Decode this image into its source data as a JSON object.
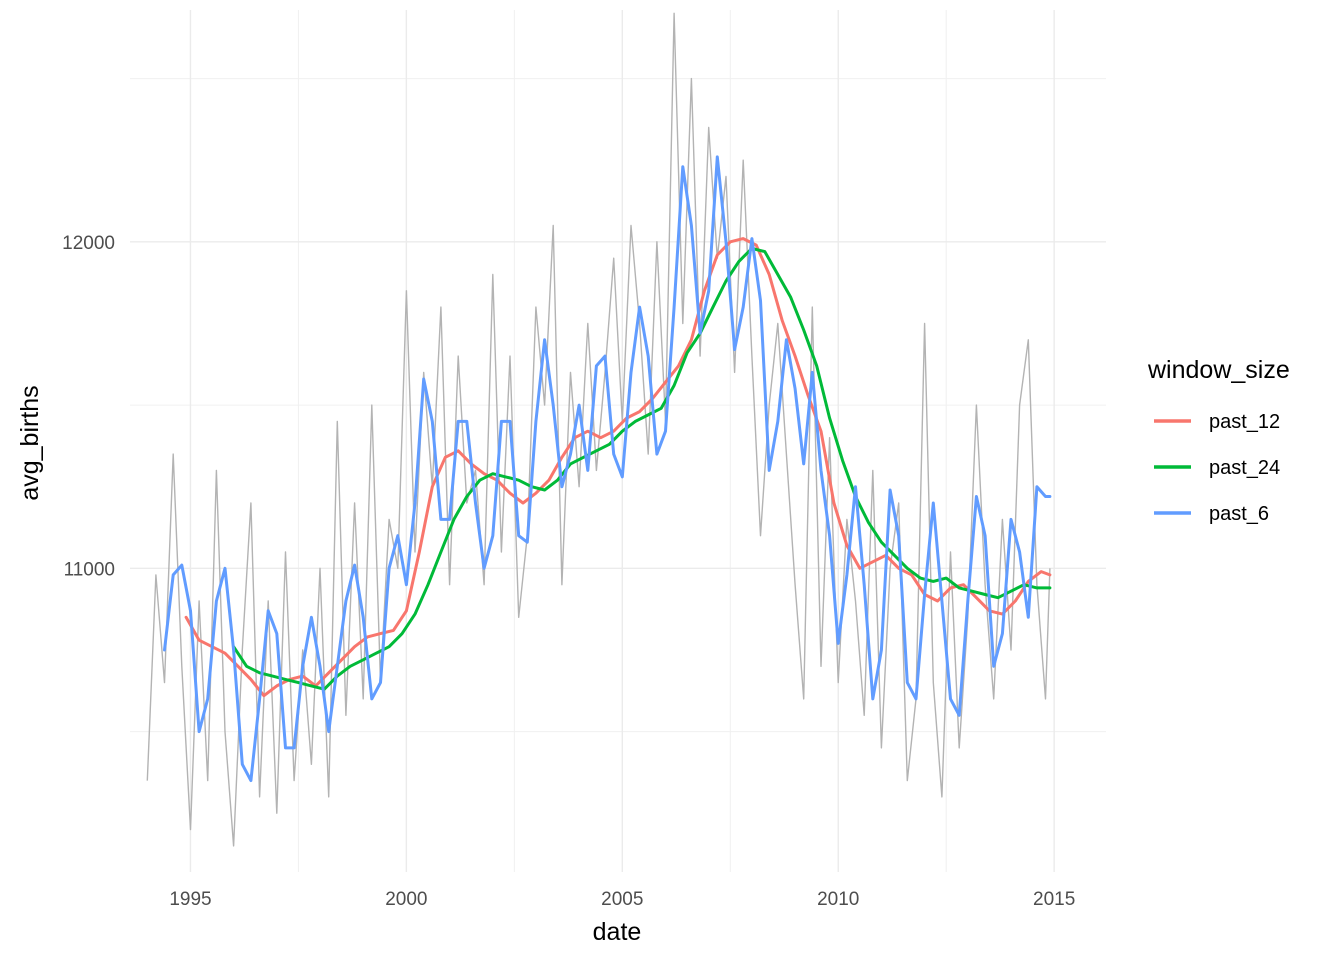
{
  "chart_data": {
    "type": "line",
    "xlabel": "date",
    "ylabel": "avg_births",
    "xlim": [
      1993.6,
      2016.2
    ],
    "ylim": [
      10070,
      12710
    ],
    "x_ticks": [
      1995,
      2000,
      2005,
      2010,
      2015
    ],
    "x_tick_labels": [
      "1995",
      "2000",
      "2005",
      "2010",
      "2015"
    ],
    "y_ticks": [
      11000,
      12000
    ],
    "y_tick_labels": [
      "11000",
      "12000"
    ],
    "grid": true,
    "raw_series_color": "#b3b3b3",
    "legend": {
      "title": "window_size",
      "position": "right"
    },
    "raw": {
      "x": [
        1994.0,
        1994.2,
        1994.4,
        1994.6,
        1994.8,
        1995.0,
        1995.2,
        1995.4,
        1995.6,
        1995.8,
        1996.0,
        1996.2,
        1996.4,
        1996.6,
        1996.8,
        1997.0,
        1997.2,
        1997.4,
        1997.6,
        1997.8,
        1998.0,
        1998.2,
        1998.4,
        1998.6,
        1998.8,
        1999.0,
        1999.2,
        1999.4,
        1999.6,
        1999.8,
        2000.0,
        2000.2,
        2000.4,
        2000.6,
        2000.8,
        2001.0,
        2001.2,
        2001.4,
        2001.6,
        2001.8,
        2002.0,
        2002.2,
        2002.4,
        2002.6,
        2002.8,
        2003.0,
        2003.2,
        2003.4,
        2003.6,
        2003.8,
        2004.0,
        2004.2,
        2004.4,
        2004.6,
        2004.8,
        2005.0,
        2005.2,
        2005.4,
        2005.6,
        2005.8,
        2006.0,
        2006.2,
        2006.4,
        2006.6,
        2006.8,
        2007.0,
        2007.2,
        2007.4,
        2007.6,
        2007.8,
        2008.0,
        2008.2,
        2008.4,
        2008.6,
        2008.8,
        2009.0,
        2009.2,
        2009.4,
        2009.6,
        2009.8,
        2010.0,
        2010.2,
        2010.4,
        2010.6,
        2010.8,
        2011.0,
        2011.2,
        2011.4,
        2011.6,
        2011.8,
        2012.0,
        2012.2,
        2012.4,
        2012.6,
        2012.8,
        2013.0,
        2013.2,
        2013.4,
        2013.6,
        2013.8,
        2014.0,
        2014.2,
        2014.4,
        2014.6,
        2014.8,
        2014.9
      ],
      "y": [
        10350,
        10980,
        10650,
        11350,
        10700,
        10200,
        10900,
        10350,
        11300,
        10500,
        10150,
        10750,
        11200,
        10300,
        10900,
        10250,
        11050,
        10350,
        10750,
        10400,
        11000,
        10300,
        11450,
        10550,
        11200,
        10600,
        11500,
        10650,
        11150,
        11000,
        11850,
        11050,
        11600,
        11250,
        11800,
        10950,
        11650,
        11200,
        11300,
        10950,
        11900,
        11050,
        11650,
        10850,
        11100,
        11800,
        11500,
        12050,
        10950,
        11600,
        11250,
        11750,
        11300,
        11600,
        11950,
        11450,
        12050,
        11750,
        11350,
        12000,
        11450,
        12700,
        11750,
        12500,
        11650,
        12350,
        11950,
        12200,
        11600,
        12250,
        11650,
        11100,
        11500,
        11750,
        11350,
        10950,
        10600,
        11800,
        10700,
        11400,
        10650,
        11150,
        10900,
        10550,
        11300,
        10450,
        11000,
        11200,
        10350,
        10600,
        11750,
        10650,
        10300,
        11050,
        10450,
        10850,
        11500,
        10950,
        10600,
        11150,
        10750,
        11500,
        11700,
        10950,
        10600,
        11000
      ]
    },
    "series": [
      {
        "name": "past_12",
        "color": "#F8766D",
        "x": [
          1994.9,
          1995.2,
          1995.5,
          1995.8,
          1996.1,
          1996.4,
          1996.7,
          1997.0,
          1997.3,
          1997.6,
          1997.9,
          1998.2,
          1998.5,
          1998.8,
          1999.1,
          1999.4,
          1999.7,
          2000.0,
          2000.3,
          2000.6,
          2000.9,
          2001.2,
          2001.5,
          2001.8,
          2002.1,
          2002.4,
          2002.7,
          2003.0,
          2003.3,
          2003.6,
          2003.9,
          2004.2,
          2004.5,
          2004.8,
          2005.1,
          2005.4,
          2005.7,
          2006.0,
          2006.3,
          2006.6,
          2006.9,
          2007.2,
          2007.5,
          2007.8,
          2008.1,
          2008.4,
          2008.7,
          2009.0,
          2009.3,
          2009.6,
          2009.9,
          2010.2,
          2010.5,
          2010.8,
          2011.1,
          2011.4,
          2011.7,
          2012.0,
          2012.3,
          2012.6,
          2012.9,
          2013.2,
          2013.5,
          2013.8,
          2014.1,
          2014.4,
          2014.7,
          2014.9
        ],
        "values": [
          10850,
          10780,
          10760,
          10740,
          10700,
          10660,
          10610,
          10640,
          10660,
          10670,
          10640,
          10680,
          10720,
          10760,
          10790,
          10800,
          10810,
          10870,
          11050,
          11250,
          11340,
          11360,
          11320,
          11290,
          11270,
          11230,
          11200,
          11230,
          11270,
          11340,
          11400,
          11420,
          11400,
          11420,
          11460,
          11480,
          11520,
          11570,
          11620,
          11700,
          11850,
          11960,
          12000,
          12010,
          11990,
          11900,
          11760,
          11650,
          11530,
          11420,
          11200,
          11070,
          11000,
          11020,
          11040,
          11000,
          10980,
          10920,
          10900,
          10940,
          10950,
          10910,
          10870,
          10860,
          10900,
          10960,
          10990,
          10980
        ]
      },
      {
        "name": "past_24",
        "color": "#00BA38",
        "x": [
          1996.0,
          1996.3,
          1996.6,
          1996.9,
          1997.2,
          1997.5,
          1997.8,
          1998.1,
          1998.4,
          1998.7,
          1999.0,
          1999.3,
          1999.6,
          1999.9,
          2000.2,
          2000.5,
          2000.8,
          2001.1,
          2001.4,
          2001.7,
          2002.0,
          2002.3,
          2002.6,
          2002.9,
          2003.2,
          2003.5,
          2003.8,
          2004.1,
          2004.4,
          2004.7,
          2005.0,
          2005.3,
          2005.6,
          2005.9,
          2006.2,
          2006.5,
          2006.8,
          2007.1,
          2007.4,
          2007.7,
          2008.0,
          2008.3,
          2008.6,
          2008.9,
          2009.2,
          2009.5,
          2009.8,
          2010.1,
          2010.4,
          2010.7,
          2011.0,
          2011.3,
          2011.6,
          2011.9,
          2012.2,
          2012.5,
          2012.8,
          2013.1,
          2013.4,
          2013.7,
          2014.0,
          2014.3,
          2014.6,
          2014.9
        ],
        "values": [
          10760,
          10700,
          10680,
          10670,
          10660,
          10650,
          10640,
          10630,
          10670,
          10700,
          10720,
          10740,
          10760,
          10800,
          10860,
          10950,
          11050,
          11150,
          11220,
          11270,
          11290,
          11280,
          11270,
          11250,
          11240,
          11270,
          11320,
          11340,
          11360,
          11380,
          11420,
          11450,
          11470,
          11490,
          11560,
          11660,
          11720,
          11800,
          11880,
          11940,
          11980,
          11970,
          11900,
          11830,
          11730,
          11620,
          11460,
          11330,
          11220,
          11140,
          11080,
          11040,
          11000,
          10970,
          10960,
          10970,
          10940,
          10930,
          10920,
          10910,
          10930,
          10950,
          10940,
          10940
        ]
      },
      {
        "name": "past_6",
        "color": "#619CFF",
        "x": [
          1994.4,
          1994.6,
          1994.8,
          1995.0,
          1995.2,
          1995.4,
          1995.6,
          1995.8,
          1996.0,
          1996.2,
          1996.4,
          1996.6,
          1996.8,
          1997.0,
          1997.2,
          1997.4,
          1997.6,
          1997.8,
          1998.0,
          1998.2,
          1998.4,
          1998.6,
          1998.8,
          1999.0,
          1999.2,
          1999.4,
          1999.6,
          1999.8,
          2000.0,
          2000.2,
          2000.4,
          2000.6,
          2000.8,
          2001.0,
          2001.2,
          2001.4,
          2001.6,
          2001.8,
          2002.0,
          2002.2,
          2002.4,
          2002.6,
          2002.8,
          2003.0,
          2003.2,
          2003.4,
          2003.6,
          2003.8,
          2004.0,
          2004.2,
          2004.4,
          2004.6,
          2004.8,
          2005.0,
          2005.2,
          2005.4,
          2005.6,
          2005.8,
          2006.0,
          2006.2,
          2006.4,
          2006.6,
          2006.8,
          2007.0,
          2007.2,
          2007.4,
          2007.6,
          2007.8,
          2008.0,
          2008.2,
          2008.4,
          2008.6,
          2008.8,
          2009.0,
          2009.2,
          2009.4,
          2009.6,
          2009.8,
          2010.0,
          2010.2,
          2010.4,
          2010.6,
          2010.8,
          2011.0,
          2011.2,
          2011.4,
          2011.6,
          2011.8,
          2012.0,
          2012.2,
          2012.4,
          2012.6,
          2012.8,
          2013.0,
          2013.2,
          2013.4,
          2013.6,
          2013.8,
          2014.0,
          2014.2,
          2014.4,
          2014.6,
          2014.8,
          2014.9
        ],
        "values": [
          10750,
          10980,
          11010,
          10870,
          10500,
          10600,
          10900,
          11000,
          10750,
          10400,
          10350,
          10600,
          10870,
          10800,
          10450,
          10450,
          10700,
          10850,
          10700,
          10500,
          10700,
          10900,
          11010,
          10850,
          10600,
          10650,
          11000,
          11100,
          10950,
          11200,
          11580,
          11450,
          11150,
          11150,
          11450,
          11450,
          11200,
          11000,
          11100,
          11450,
          11450,
          11100,
          11080,
          11450,
          11700,
          11500,
          11250,
          11350,
          11500,
          11300,
          11620,
          11650,
          11350,
          11280,
          11600,
          11800,
          11650,
          11350,
          11420,
          11800,
          12230,
          12050,
          11720,
          11850,
          12260,
          12000,
          11670,
          11800,
          12010,
          11820,
          11300,
          11450,
          11700,
          11550,
          11320,
          11600,
          11300,
          11100,
          10770,
          10980,
          11250,
          10950,
          10600,
          10750,
          11240,
          11100,
          10650,
          10600,
          10920,
          11200,
          10900,
          10600,
          10550,
          10900,
          11220,
          11100,
          10700,
          10800,
          11150,
          11050,
          10850,
          11250,
          11220,
          11220
        ]
      }
    ]
  }
}
